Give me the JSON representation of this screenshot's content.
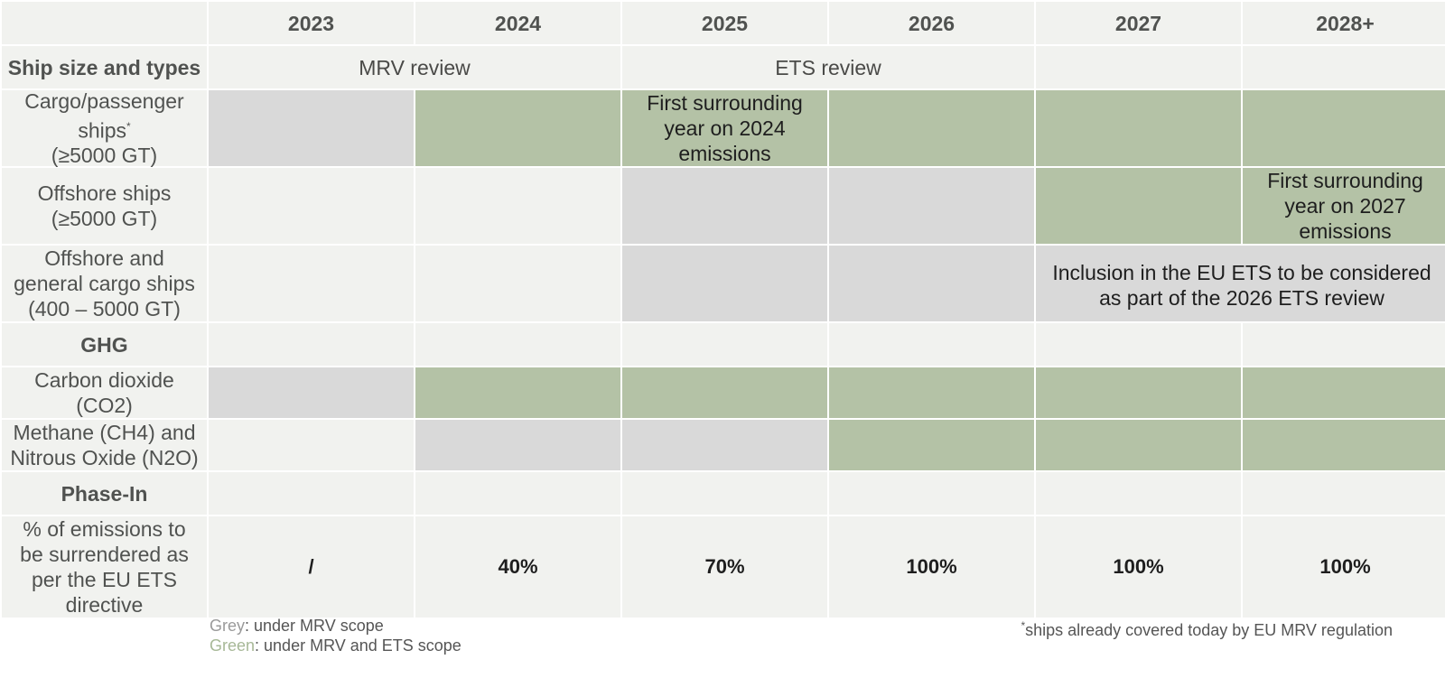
{
  "years": [
    "2023",
    "2024",
    "2025",
    "2026",
    "2027",
    "2028+"
  ],
  "sections": {
    "ships": "Ship size and types",
    "ghg": "GHG",
    "phase": "Phase-In"
  },
  "reviews": {
    "mrv": "MRV review",
    "ets": "ETS review"
  },
  "rows": {
    "cargo": {
      "label_line1": "Cargo/passenger",
      "label_line2": "ships",
      "label_sup": "*",
      "label_line3": "(≥5000 GT)",
      "note": "First surrounding year on 2024 emissions"
    },
    "offshore": {
      "label_line1": "Offshore ships",
      "label_line2": "(≥5000 GT)",
      "note": "First surrounding year on 2027 emissions"
    },
    "general": {
      "label_line1": "Offshore and",
      "label_line2": "general cargo ships",
      "label_line3": "(400 – 5000 GT)",
      "note": "Inclusion in the EU ETS to be considered as part of the 2026 ETS review"
    },
    "co2": {
      "label_line1": "Carbon dioxide",
      "label_line2": "(CO2)"
    },
    "ch4": {
      "label_line1": "Methane (CH4) and",
      "label_line2": "Nitrous Oxide (N2O)"
    },
    "surrender": {
      "label": "% of emissions to be surrendered as per the EU ETS directive",
      "values": [
        "/",
        "40%",
        "70%",
        "100%",
        "100%",
        "100%"
      ]
    }
  },
  "legend": {
    "grey_word": "Grey",
    "grey_text": ": under MRV scope",
    "green_word": "Green",
    "green_text": ": under MRV and ETS scope"
  },
  "footnote": {
    "mark": "*",
    "text": "ships already covered today by EU MRV regulation"
  },
  "colors": {
    "grey": "#d9d9d9",
    "green": "#b4c2a6",
    "background": "#f1f2ef"
  }
}
